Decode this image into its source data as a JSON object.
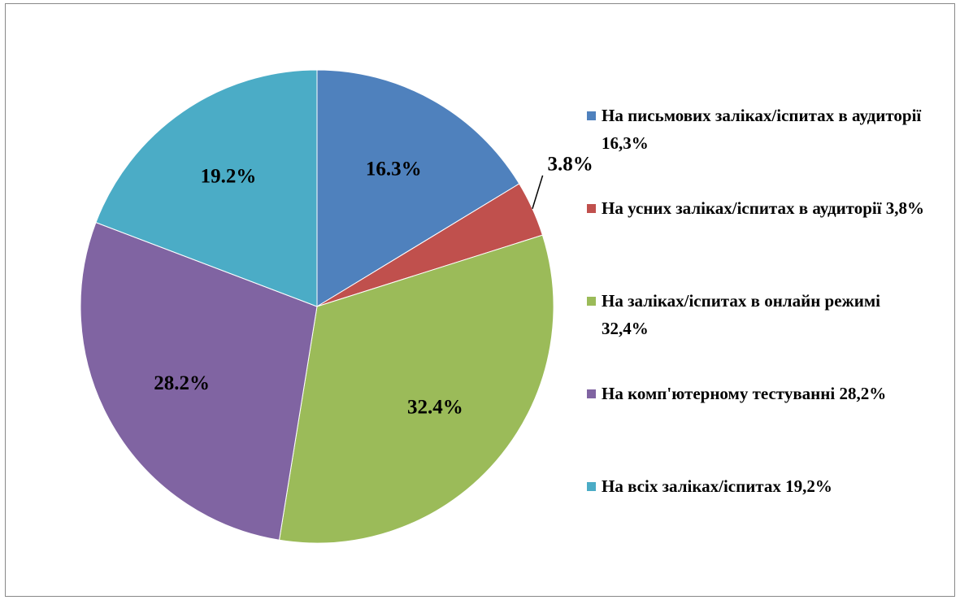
{
  "chart_data": {
    "type": "pie",
    "categories": [
      "На письмових заліках/іспитах в аудиторії 16,3%",
      "На усних заліках/іспитах в аудиторії 3,8%",
      "На заліках/іспитах в онлайн режимі 32,4%",
      "На комп'ютерному тестуванні 28,2%",
      "На всіх заліках/іспитах 19,2%"
    ],
    "values": [
      16.3,
      3.8,
      32.4,
      28.2,
      19.2
    ],
    "value_labels": [
      "16.3%",
      "3.8%",
      "32.4%",
      "28.2%",
      "19.2%"
    ],
    "colors": [
      "#4f81bd",
      "#c0504d",
      "#9bbb59",
      "#8064a2",
      "#4bacc6"
    ],
    "legend": "right"
  }
}
